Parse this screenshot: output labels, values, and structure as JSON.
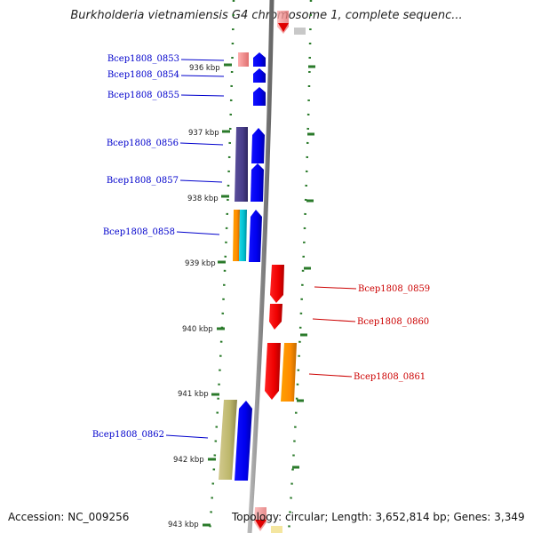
{
  "title": "Burkholderia vietnamiensis G4 chromosome 1, complete sequenc...",
  "footer": {
    "accession": "Accession: NC_009256",
    "topology": "Topology: circular; Length: 3,652,814 bp; Genes: 3,349"
  },
  "colors": {
    "left_strand_labels": "#0000cc",
    "right_strand_labels": "#cc0000",
    "ticks": "#2a7a2a",
    "backbone": "#888888"
  },
  "kbp_ticks": [
    "936 kbp",
    "937 kbp",
    "938 kbp",
    "939 kbp",
    "940 kbp",
    "941 kbp",
    "942 kbp",
    "943 kbp"
  ],
  "genes": [
    {
      "label": "Bcep1808_0853",
      "strand": "left"
    },
    {
      "label": "Bcep1808_0854",
      "strand": "left"
    },
    {
      "label": "Bcep1808_0855",
      "strand": "left"
    },
    {
      "label": "Bcep1808_0856",
      "strand": "left"
    },
    {
      "label": "Bcep1808_0857",
      "strand": "left"
    },
    {
      "label": "Bcep1808_0858",
      "strand": "left"
    },
    {
      "label": "Bcep1808_0859",
      "strand": "right"
    },
    {
      "label": "Bcep1808_0860",
      "strand": "right"
    },
    {
      "label": "Bcep1808_0861",
      "strand": "right"
    },
    {
      "label": "Bcep1808_0862",
      "strand": "left"
    }
  ]
}
